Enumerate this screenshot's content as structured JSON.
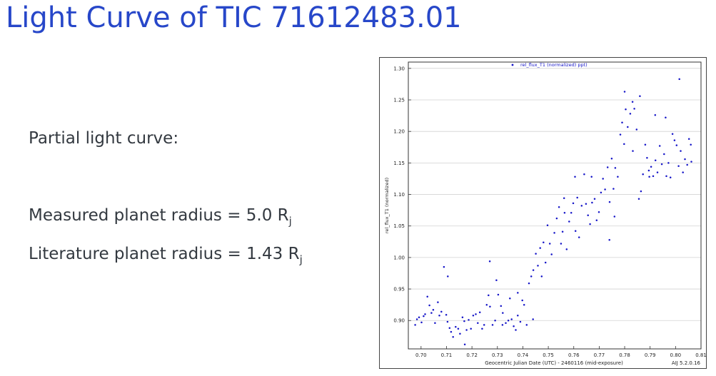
{
  "slide": {
    "title": "Light Curve of TIC 71612483.01",
    "line1": "Partial light curve:",
    "line2_prefix": "Measured planet radius = 5.0 R",
    "line2_sub": "j",
    "line3_prefix": "Literature planet radius = 1.43 R",
    "line3_sub": "j"
  },
  "chart_data": {
    "type": "scatter",
    "legend": "rel_flux_T1 (normalized) ppt)",
    "legend_position": "top-center",
    "xlabel": "Geocentric Julian Date (UTC) - 2460116 (mid-exposure)",
    "ylabel": "rel_flux_T1 (normalized)",
    "footer_right": "AIJ 5.2.0.16",
    "xlim": [
      0.695,
      0.81
    ],
    "ylim": [
      0.855,
      1.31
    ],
    "xticks": [
      "0.70",
      "0.71",
      "0.72",
      "0.73",
      "0.74",
      "0.75",
      "0.76",
      "0.77",
      "0.78",
      "0.79",
      "0.80",
      "0.81"
    ],
    "yticks": [
      "0.90",
      "0.95",
      "1.00",
      "1.05",
      "1.10",
      "1.15",
      "1.20",
      "1.25",
      "1.30"
    ],
    "grid": true,
    "marker_color": "#1515c8",
    "series": [
      {
        "x": [
          0.6977,
          0.6984,
          0.6992,
          0.7002,
          0.701,
          0.7016,
          0.7025,
          0.7033,
          0.7041,
          0.7048,
          0.7055,
          0.7066,
          0.7072,
          0.708,
          0.709,
          0.7099,
          0.7104,
          0.7112,
          0.7118,
          0.7126,
          0.7136,
          0.7146,
          0.7153,
          0.7163,
          0.717,
          0.7179,
          0.7187,
          0.7196,
          0.7205,
          0.7215,
          0.7223,
          0.7231,
          0.724,
          0.7248,
          0.7258,
          0.7265,
          0.7271,
          0.7281,
          0.7291,
          0.7296,
          0.7303,
          0.7314,
          0.7321,
          0.7333,
          0.7343,
          0.7349,
          0.7356,
          0.7364,
          0.7372,
          0.738,
          0.739,
          0.7398,
          0.7405,
          0.7415,
          0.7424,
          0.7433,
          0.7441,
          0.7451,
          0.7459,
          0.7468,
          0.7474,
          0.7481,
          0.7489,
          0.7497,
          0.7506,
          0.7513,
          0.7524,
          0.7533,
          0.7542,
          0.755,
          0.7556,
          0.7564,
          0.7572,
          0.7582,
          0.759,
          0.7598,
          0.7607,
          0.7614,
          0.7621,
          0.7631,
          0.7641,
          0.7648,
          0.7656,
          0.7664,
          0.7672,
          0.7682,
          0.769,
          0.7699,
          0.7707,
          0.7715,
          0.7723,
          0.7733,
          0.7741,
          0.7749,
          0.7756,
          0.7763,
          0.7773,
          0.7783,
          0.779,
          0.7798,
          0.7804,
          0.7812,
          0.7822,
          0.7831,
          0.7838,
          0.7847,
          0.7856,
          0.7864,
          0.7872,
          0.7881,
          0.7888,
          0.7895,
          0.7904,
          0.7912,
          0.7921,
          0.7929,
          0.7938,
          0.7946,
          0.7955,
          0.7964,
          0.7972,
          0.798,
          0.7988,
          0.7996,
          0.8004,
          0.8012,
          0.802,
          0.8029,
          0.8037,
          0.8046,
          0.8053,
          0.8062,
          0.7105,
          0.7172,
          0.727,
          0.732,
          0.738,
          0.744,
          0.7562,
          0.7605,
          0.767,
          0.774,
          0.7832,
          0.7897,
          0.7961,
          0.8015,
          0.806,
          0.78,
          0.786,
          0.792,
          0.776
        ],
        "y": [
          0.893,
          0.902,
          0.905,
          0.897,
          0.907,
          0.91,
          0.938,
          0.924,
          0.912,
          0.917,
          0.896,
          0.929,
          0.908,
          0.914,
          0.985,
          0.909,
          0.898,
          0.888,
          0.882,
          0.874,
          0.89,
          0.887,
          0.879,
          0.905,
          0.899,
          0.885,
          0.901,
          0.887,
          0.908,
          0.91,
          0.896,
          0.913,
          0.887,
          0.893,
          0.925,
          0.94,
          0.922,
          0.893,
          0.9,
          0.964,
          0.941,
          0.923,
          0.912,
          0.896,
          0.9,
          0.935,
          0.902,
          0.891,
          0.885,
          0.908,
          0.898,
          0.932,
          0.925,
          0.893,
          0.959,
          0.97,
          0.98,
          1.006,
          0.987,
          1.015,
          0.97,
          1.024,
          0.992,
          1.051,
          1.022,
          1.005,
          1.039,
          1.062,
          1.08,
          1.022,
          1.041,
          1.071,
          1.013,
          1.057,
          1.071,
          1.086,
          1.042,
          1.095,
          1.032,
          1.082,
          1.132,
          1.085,
          1.067,
          1.053,
          1.087,
          1.093,
          1.059,
          1.072,
          1.103,
          1.125,
          1.108,
          1.143,
          1.088,
          1.157,
          1.109,
          1.142,
          1.128,
          1.195,
          1.214,
          1.18,
          1.235,
          1.207,
          1.228,
          1.247,
          1.236,
          1.203,
          1.093,
          1.105,
          1.132,
          1.179,
          1.158,
          1.138,
          1.144,
          1.129,
          1.154,
          1.135,
          1.177,
          1.148,
          1.164,
          1.129,
          1.15,
          1.127,
          1.196,
          1.186,
          1.178,
          1.145,
          1.169,
          1.135,
          1.156,
          1.147,
          1.188,
          1.152,
          0.97,
          0.862,
          0.994,
          0.893,
          0.944,
          0.902,
          1.094,
          1.128,
          1.128,
          1.028,
          1.169,
          1.128,
          1.222,
          1.283,
          1.179,
          1.263,
          1.256,
          1.226,
          1.065
        ]
      }
    ]
  }
}
